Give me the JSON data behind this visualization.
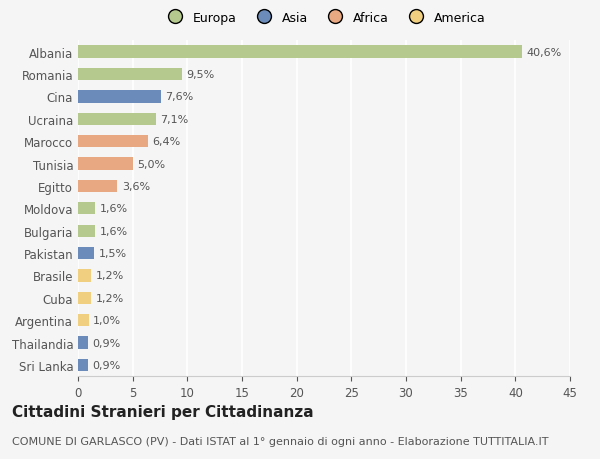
{
  "countries": [
    "Albania",
    "Romania",
    "Cina",
    "Ucraina",
    "Marocco",
    "Tunisia",
    "Egitto",
    "Moldova",
    "Bulgaria",
    "Pakistan",
    "Brasile",
    "Cuba",
    "Argentina",
    "Thailandia",
    "Sri Lanka"
  ],
  "values": [
    40.6,
    9.5,
    7.6,
    7.1,
    6.4,
    5.0,
    3.6,
    1.6,
    1.6,
    1.5,
    1.2,
    1.2,
    1.0,
    0.9,
    0.9
  ],
  "labels": [
    "40,6%",
    "9,5%",
    "7,6%",
    "7,1%",
    "6,4%",
    "5,0%",
    "3,6%",
    "1,6%",
    "1,6%",
    "1,5%",
    "1,2%",
    "1,2%",
    "1,0%",
    "0,9%",
    "0,9%"
  ],
  "colors": [
    "#b5c98e",
    "#b5c98e",
    "#6b8cba",
    "#b5c98e",
    "#e8a882",
    "#e8a882",
    "#e8a882",
    "#b5c98e",
    "#b5c98e",
    "#6b8cba",
    "#f0d080",
    "#f0d080",
    "#f0d080",
    "#6b8cba",
    "#6b8cba"
  ],
  "legend_labels": [
    "Europa",
    "Asia",
    "Africa",
    "America"
  ],
  "legend_colors": [
    "#b5c98e",
    "#6b8cba",
    "#e8a882",
    "#f0d080"
  ],
  "title": "Cittadini Stranieri per Cittadinanza",
  "subtitle": "COMUNE DI GARLASCO (PV) - Dati ISTAT al 1° gennaio di ogni anno - Elaborazione TUTTITALIA.IT",
  "xlim": [
    0,
    45
  ],
  "xticks": [
    0,
    5,
    10,
    15,
    20,
    25,
    30,
    35,
    40,
    45
  ],
  "background_color": "#f5f5f5",
  "bar_height": 0.55,
  "title_fontsize": 11,
  "subtitle_fontsize": 8,
  "tick_fontsize": 8.5,
  "label_fontsize": 8
}
